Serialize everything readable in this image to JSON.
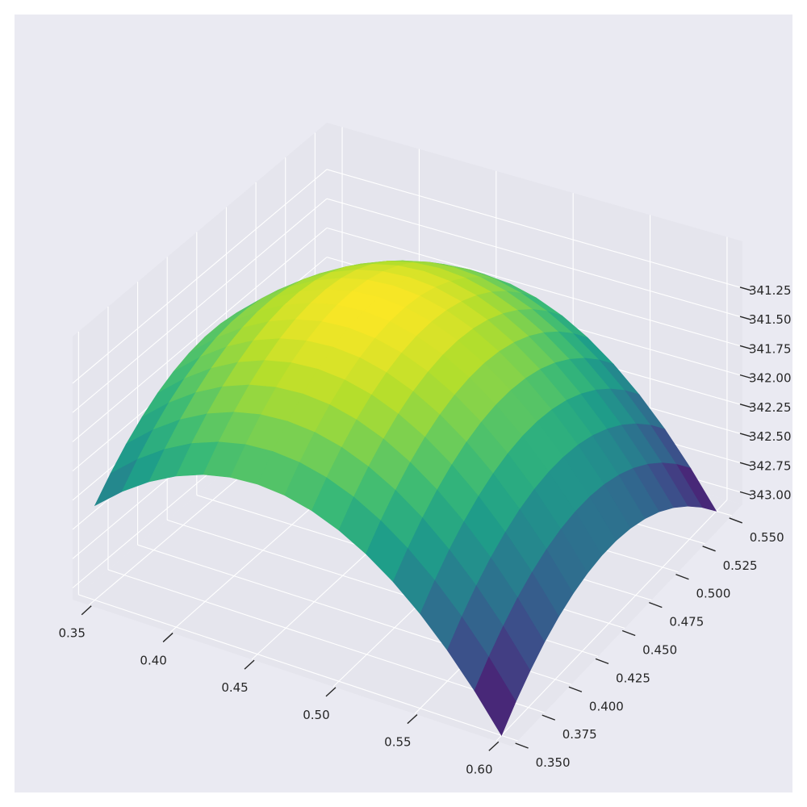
{
  "chart_data": {
    "type": "surface",
    "title": "",
    "xlabel": "",
    "ylabel": "",
    "zlabel": "",
    "colormap": "viridis",
    "style": {
      "figure_background": "#ffffff",
      "axes_background": "#eaeaf2",
      "pane_color": "#e5e5ed",
      "grid_color": "#ffffff",
      "tick_color": "#262626"
    },
    "x_range": [
      0.34,
      0.61
    ],
    "y_range": [
      0.345,
      0.56
    ],
    "z_range": [
      340.85,
      343.1
    ],
    "x_ticks": [
      "0.35",
      "0.40",
      "0.45",
      "0.50",
      "0.55",
      "0.60"
    ],
    "y_ticks": [
      "0.350",
      "0.375",
      "0.400",
      "0.425",
      "0.450",
      "0.475",
      "0.500",
      "0.525",
      "0.550"
    ],
    "z_ticks": [
      "341.25",
      "341.50",
      "341.75",
      "342.00",
      "342.25",
      "342.50",
      "342.75",
      "343.00"
    ],
    "z_axis_inverted": true,
    "grid": true,
    "surface": {
      "x_min": 0.35,
      "x_max": 0.6,
      "y_min": 0.35,
      "y_max": 0.55,
      "grid_steps": 15,
      "center_x": 0.45,
      "center_y": 0.45,
      "z_at_center": 341.0,
      "z_at_far_corner": 343.1,
      "form": "paraboloid: z = z_at_center + k * ((x - center_x)^2 + (y - center_y)^2)"
    }
  }
}
